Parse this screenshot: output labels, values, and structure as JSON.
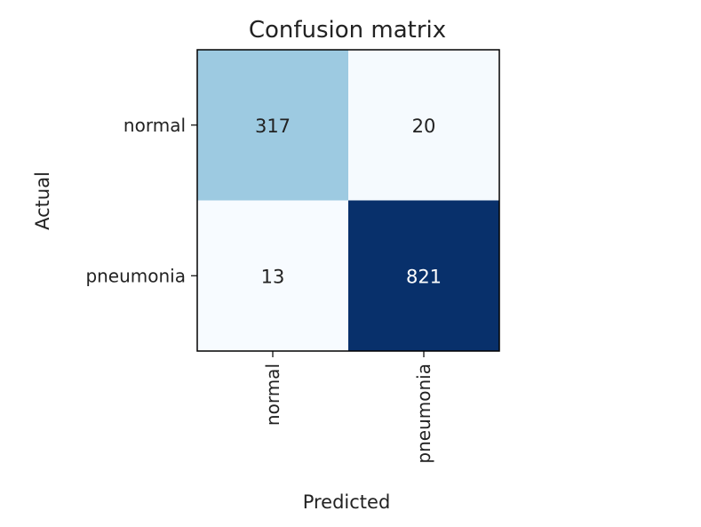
{
  "chart_data": {
    "type": "heatmap",
    "title": "Confusion matrix",
    "xlabel": "Predicted",
    "ylabel": "Actual",
    "x_categories": [
      "normal",
      "pneumonia"
    ],
    "y_categories": [
      "normal",
      "pneumonia"
    ],
    "values": [
      [
        317,
        20
      ],
      [
        13,
        821
      ]
    ],
    "value_labels": [
      [
        "317",
        "20"
      ],
      [
        "13",
        "821"
      ]
    ],
    "colormap": "Blues",
    "color_low": "#f7fbff",
    "color_high": "#08306b",
    "text_color_dark": "#222222",
    "text_color_light": "#ffffff"
  }
}
